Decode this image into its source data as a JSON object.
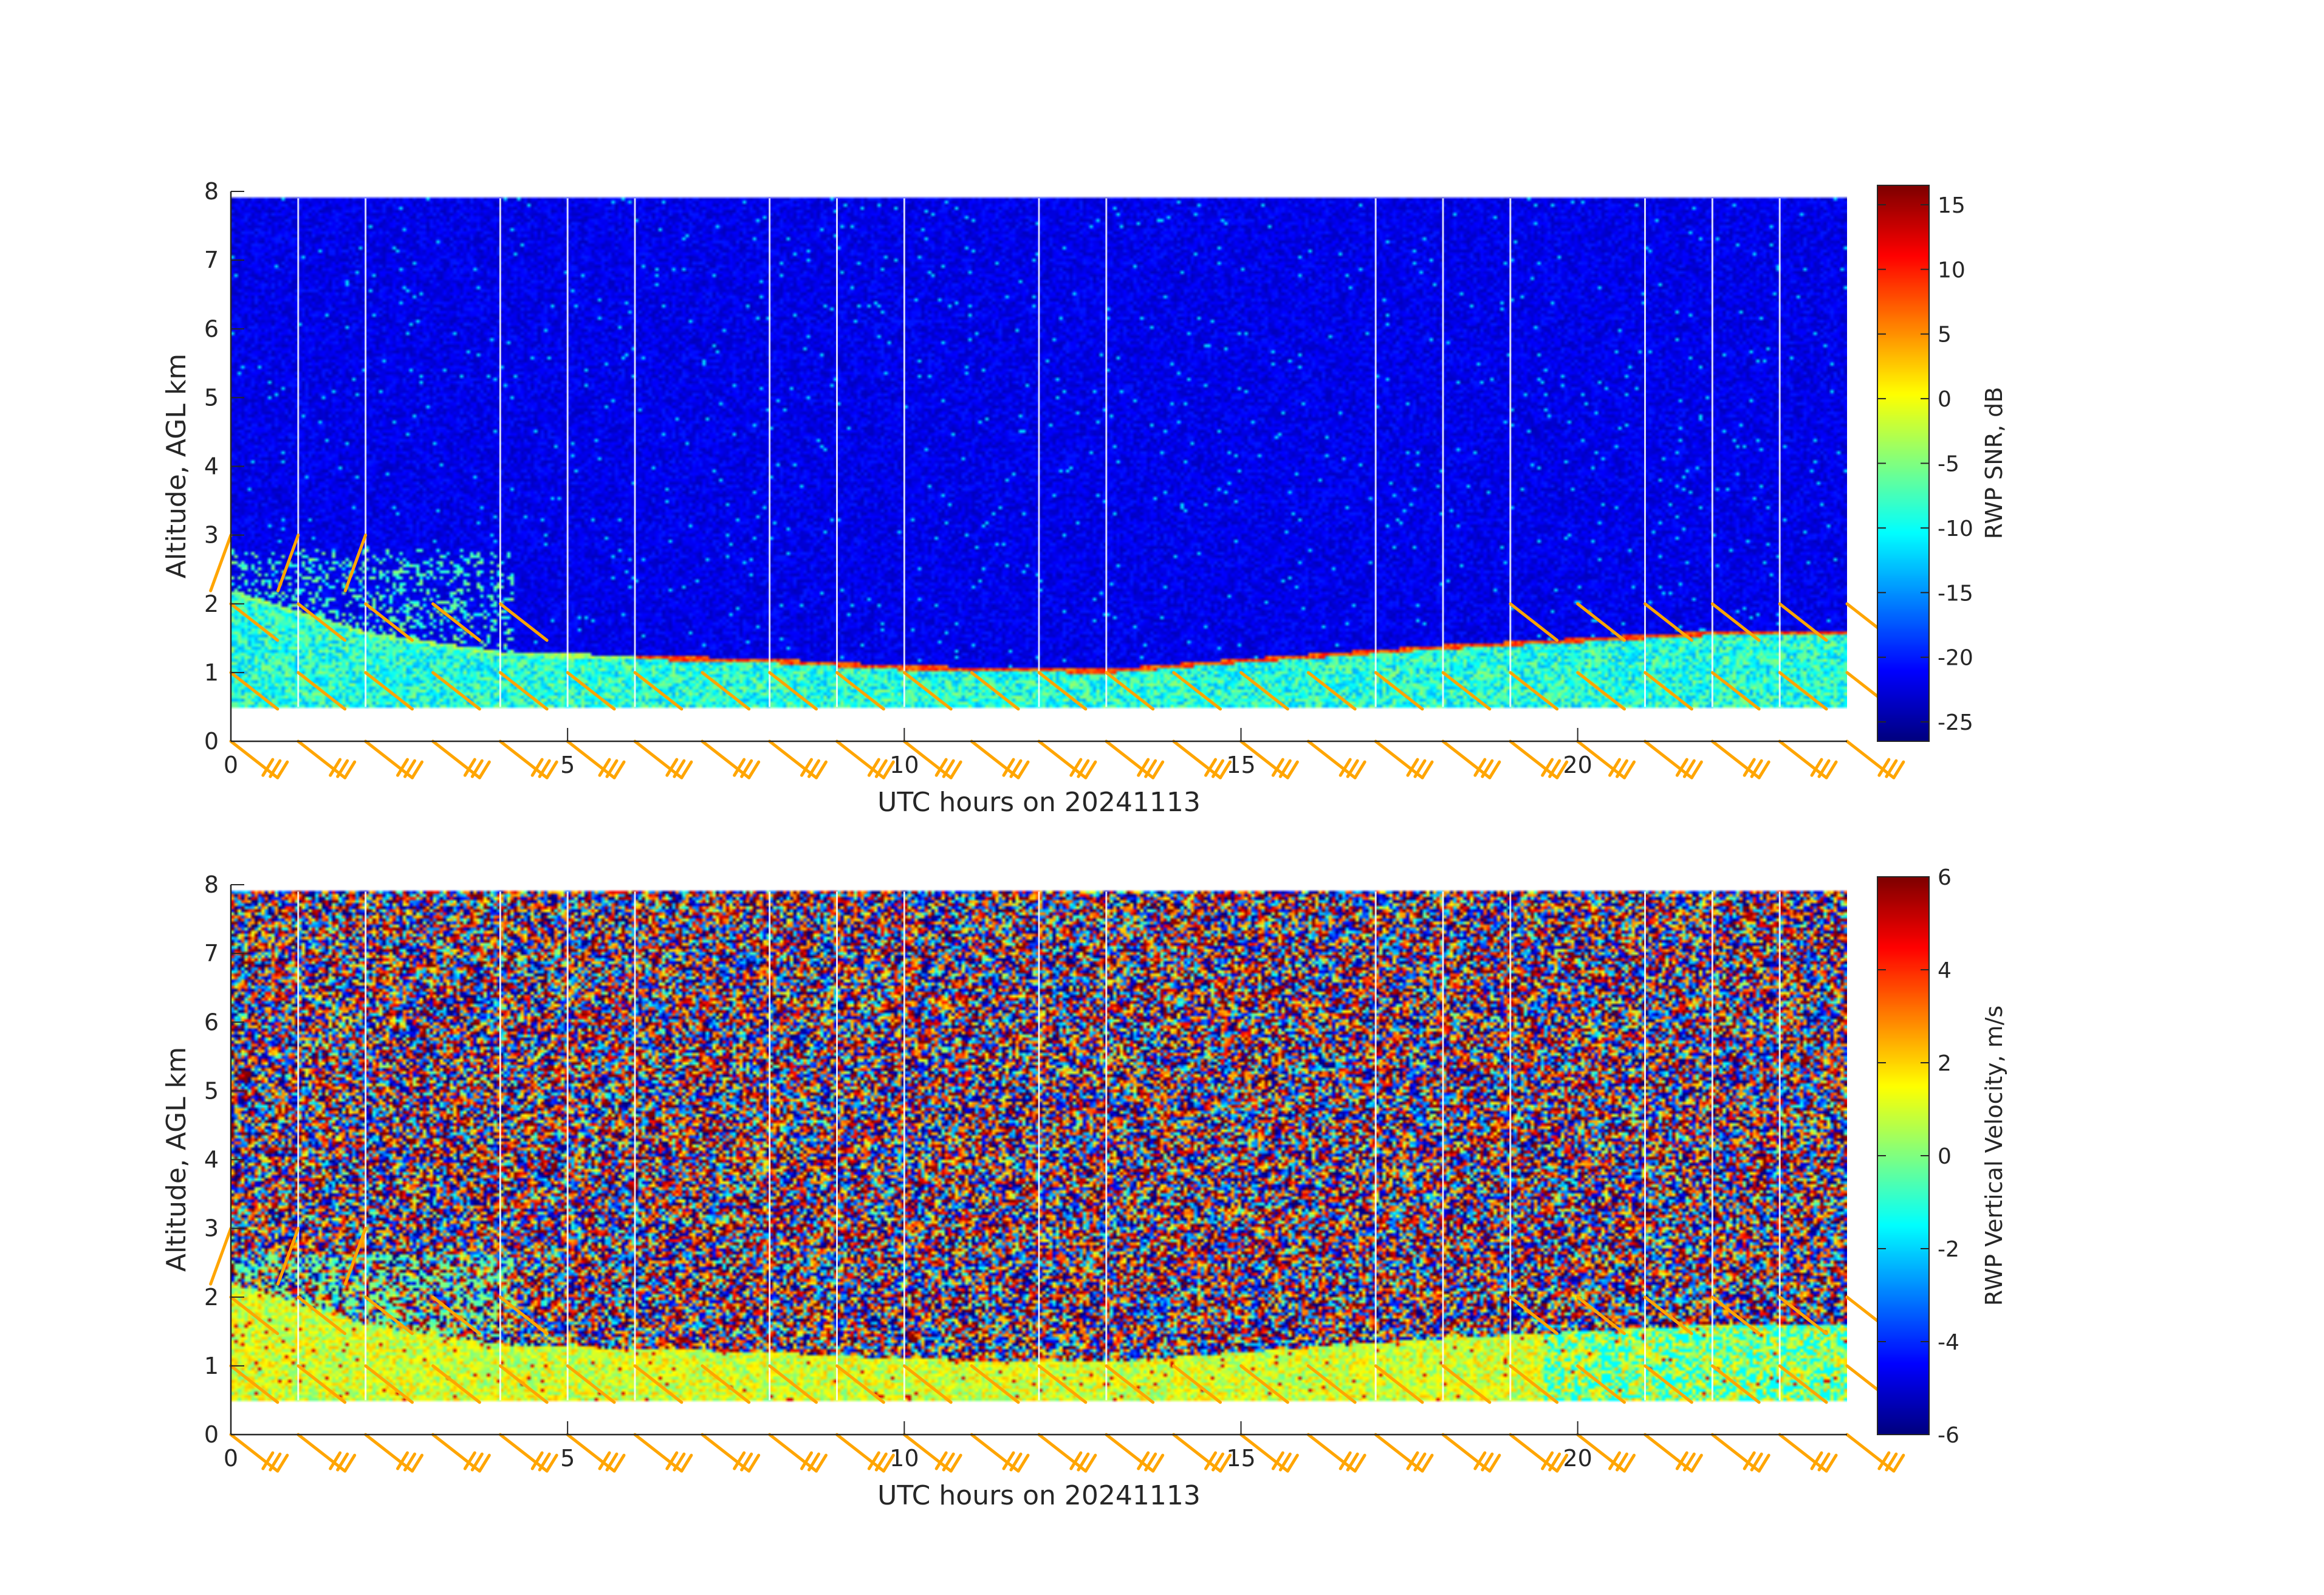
{
  "chart_data": [
    {
      "type": "heatmap",
      "xlabel": "UTC hours on 20241113",
      "ylabel": "Altitude, AGL km",
      "xlim": [
        0,
        24
      ],
      "ylim": [
        0,
        8
      ],
      "xticks": [
        0,
        5,
        10,
        15,
        20
      ],
      "yticks": [
        0,
        1,
        2,
        3,
        4,
        5,
        6,
        7,
        8
      ],
      "colorbar": {
        "label": "RWP SNR, dB",
        "range": [
          -26.5,
          16.5
        ],
        "ticks": [
          15,
          10,
          5,
          0,
          -5,
          -10,
          -15,
          -20,
          -25
        ],
        "colormap": "jet"
      },
      "data_range": {
        "min_altitude_km": 0.5,
        "max_altitude_km": 7.9
      },
      "features": {
        "background_value_db": -22,
        "boundary_layer_top_km": [
          {
            "hour": 0,
            "value": 2.2
          },
          {
            "hour": 2,
            "value": 1.6
          },
          {
            "hour": 4,
            "value": 1.3
          },
          {
            "hour": 8,
            "value": 1.2
          },
          {
            "hour": 10,
            "value": 1.1
          },
          {
            "hour": 13,
            "value": 1.05
          },
          {
            "hour": 15,
            "value": 1.2
          },
          {
            "hour": 18,
            "value": 1.4
          },
          {
            "hour": 20,
            "value": 1.5
          },
          {
            "hour": 22,
            "value": 1.6
          },
          {
            "hour": 24,
            "value": 1.6
          }
        ],
        "inversion_peak_db": 8,
        "data_gap_hours": [
          1,
          2,
          4,
          5,
          6,
          8,
          9,
          10,
          12,
          13,
          17,
          18,
          19,
          21,
          22,
          23
        ]
      },
      "wind_barbs": {
        "color": "#FFA500",
        "interval_hours": 1,
        "heights_km": [
          0,
          1,
          2,
          3
        ]
      }
    },
    {
      "type": "heatmap",
      "xlabel": "UTC hours on 20241113",
      "ylabel": "Altitude, AGL km",
      "xlim": [
        0,
        24
      ],
      "ylim": [
        0,
        8
      ],
      "xticks": [
        0,
        5,
        10,
        15,
        20
      ],
      "yticks": [
        0,
        1,
        2,
        3,
        4,
        5,
        6,
        7,
        8
      ],
      "colorbar": {
        "label": "RWP Vertical Velocity, m/s",
        "range": [
          -6,
          6
        ],
        "ticks": [
          6,
          4,
          2,
          0,
          -2,
          -4,
          -6
        ],
        "colormap": "jet"
      },
      "data_range": {
        "min_altitude_km": 0.5,
        "max_altitude_km": 7.9
      },
      "features": {
        "noise_above_boundary_layer": true,
        "boundary_layer_velocity_ms": 1.0,
        "data_gap_hours": [
          1,
          2,
          4,
          5,
          6,
          8,
          9,
          10,
          12,
          13,
          17,
          18,
          19,
          21,
          22,
          23
        ]
      },
      "wind_barbs": {
        "color": "#FFA500",
        "interval_hours": 1,
        "heights_km": [
          0,
          1,
          2,
          3
        ]
      }
    }
  ]
}
